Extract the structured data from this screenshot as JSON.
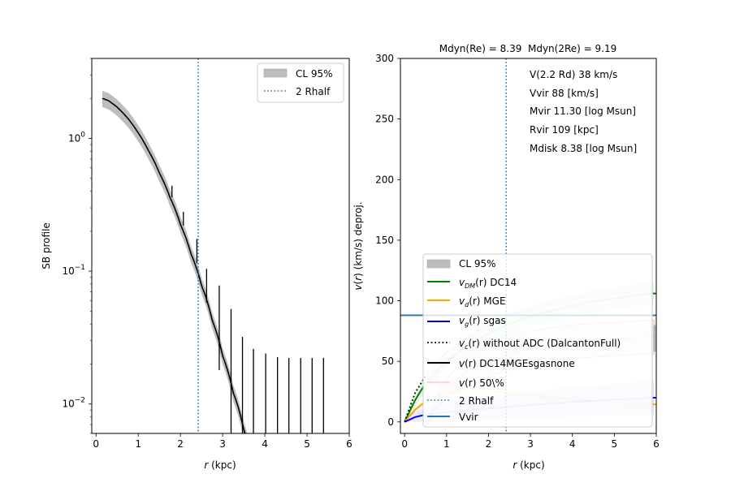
{
  "chart_data": [
    {
      "type": "line",
      "panel": "left",
      "title": "",
      "xlabel": "r (kpc)",
      "ylabel": "SB profile",
      "yscale": "log",
      "xlim": [
        -0.1,
        6.0
      ],
      "ylim": [
        0.006,
        4.0
      ],
      "xticks": [
        0,
        1,
        2,
        3,
        4,
        5,
        6
      ],
      "yticks": [
        {
          "value": 1,
          "label_base": "10",
          "label_exp": "0"
        },
        {
          "value": 0.1,
          "label_base": "10",
          "label_exp": "−1"
        },
        {
          "value": 0.01,
          "label_base": "10",
          "label_exp": "−2"
        }
      ],
      "legend": {
        "position": "upper right",
        "entries": [
          {
            "label": "CL 95%",
            "kind": "patch",
            "color": "#bdbdbd"
          },
          {
            "label": "2 Rhalf",
            "kind": "dotted",
            "color": "#1f77b4"
          }
        ]
      },
      "rhalf2": 2.42,
      "model": {
        "name": "SB model",
        "color": "#000000",
        "band_color": "#bdbdbd",
        "x": [
          0.15,
          0.3,
          0.5,
          0.75,
          1.0,
          1.25,
          1.5,
          1.75,
          2.0,
          2.25,
          2.5,
          2.75,
          3.0,
          3.25,
          3.5,
          3.57
        ],
        "y": [
          2.0,
          1.92,
          1.72,
          1.42,
          1.1,
          0.8,
          0.55,
          0.36,
          0.225,
          0.135,
          0.078,
          0.043,
          0.023,
          0.0122,
          0.0064,
          0.0055
        ],
        "band_frac": 0.14
      },
      "errorbars": {
        "color": "#000000",
        "points": [
          {
            "x": 1.8,
            "lo": 0.36,
            "hi": 0.44
          },
          {
            "x": 2.07,
            "lo": 0.22,
            "hi": 0.28
          },
          {
            "x": 2.39,
            "lo": 0.115,
            "hi": 0.175
          },
          {
            "x": 2.62,
            "lo": 0.058,
            "hi": 0.104
          },
          {
            "x": 2.92,
            "lo": 0.018,
            "hi": 0.078
          },
          {
            "x": 3.2,
            "lo": 0.0055,
            "hi": 0.052
          },
          {
            "x": 3.47,
            "lo": 0.0055,
            "hi": 0.032
          },
          {
            "x": 3.73,
            "lo": 0.0055,
            "hi": 0.026
          },
          {
            "x": 4.02,
            "lo": 0.0055,
            "hi": 0.024
          },
          {
            "x": 4.3,
            "lo": 0.0055,
            "hi": 0.0225
          },
          {
            "x": 4.57,
            "lo": 0.0055,
            "hi": 0.0222
          },
          {
            "x": 4.85,
            "lo": 0.0055,
            "hi": 0.0222
          },
          {
            "x": 5.12,
            "lo": 0.0055,
            "hi": 0.0222
          },
          {
            "x": 5.39,
            "lo": 0.0055,
            "hi": 0.0222
          }
        ]
      }
    },
    {
      "type": "line",
      "panel": "right",
      "title": "Mdyn(Re) = 8.39  Mdyn(2Re) = 9.19",
      "xlabel": "r (kpc)",
      "ylabel": "v(r) (km/s) deproj.",
      "xlim": [
        -0.1,
        6.0
      ],
      "ylim": [
        -9.5,
        300
      ],
      "xticks": [
        0,
        1,
        2,
        3,
        4,
        5,
        6
      ],
      "yticks": [
        0,
        50,
        100,
        150,
        200,
        250,
        300
      ],
      "annotations": [
        "V(2.2 Rd) 38 km/s",
        "Vvir 88 [km/s]",
        "Mvir 11.30 [log Msun]",
        "Rvir 109 [kpc]",
        "Mdisk 8.38 [log Msun]"
      ],
      "rhalf2": 2.42,
      "vvir": 88,
      "legend": {
        "position": "lower right",
        "entries": [
          {
            "label": "CL 95%",
            "kind": "patch",
            "color": "#bdbdbd"
          },
          {
            "label_main": "v",
            "label_sub": "DM",
            "label_rest": "(r) DC14",
            "kind": "solid",
            "color": "#008000"
          },
          {
            "label_main": "v",
            "label_sub": "d",
            "label_rest": "(r) MGE",
            "kind": "solid",
            "color": "#ffa500"
          },
          {
            "label_main": "v",
            "label_sub": "g",
            "label_rest": "(r) sgas",
            "kind": "solid",
            "color": "#0000ff"
          },
          {
            "label_main": "v",
            "label_sub": "c",
            "label_rest": "(r) without ADC (DalcantonFull)",
            "kind": "dotted",
            "color": "#000000"
          },
          {
            "label_main": "v",
            "label_sub": "",
            "label_rest": "(r) DC14MGEsgasnone",
            "kind": "solid",
            "color": "#000000"
          },
          {
            "label_main": "v",
            "label_sub": "",
            "label_rest": "(r) 50\\%",
            "kind": "solid-faint",
            "color": "#ff9999"
          },
          {
            "label": "2 Rhalf",
            "kind": "dotted",
            "color": "#1f77b4"
          },
          {
            "label": "Vvir",
            "kind": "solid",
            "color": "#1f77b4"
          }
        ]
      },
      "series": [
        {
          "name": "vDM DC14",
          "color": "#008000",
          "x": [
            0,
            0.25,
            0.5,
            1.0,
            1.5,
            2.0,
            2.5,
            3.0,
            3.5,
            4.0,
            4.5,
            5.0,
            5.5,
            5.95
          ],
          "y": [
            0,
            18,
            32,
            50,
            63,
            73,
            81,
            87,
            92,
            96,
            99.5,
            102,
            104.5,
            106
          ],
          "band": [
            6,
            6,
            7,
            8,
            8,
            9,
            9,
            9,
            9,
            9,
            9,
            9,
            9,
            9
          ]
        },
        {
          "name": "vd MGE",
          "color": "#ffa500",
          "x": [
            0,
            0.25,
            0.5,
            1.0,
            1.5,
            2.0,
            2.5,
            3.0,
            3.5,
            4.0,
            4.5,
            5.0,
            5.5,
            5.95
          ],
          "y": [
            0,
            10,
            17,
            23,
            25,
            25,
            24,
            22,
            20,
            18.5,
            17,
            16,
            15,
            14.5
          ],
          "band": [
            2,
            2,
            3,
            3,
            3,
            3,
            3,
            3,
            3,
            3,
            3,
            3,
            3,
            3
          ]
        },
        {
          "name": "vg sgas",
          "color": "#0000ff",
          "x": [
            0,
            0.25,
            0.5,
            1.0,
            2.0,
            3.0,
            4.0,
            5.0,
            5.95
          ],
          "y": [
            0,
            4,
            6,
            8,
            11,
            14,
            16.5,
            18.5,
            20
          ],
          "band": [
            3,
            4,
            6,
            8,
            10,
            11,
            12,
            13,
            14
          ]
        },
        {
          "name": "vc without ADC",
          "color": "#000000",
          "dotted": true,
          "x": [
            0,
            0.25,
            0.5,
            1.0,
            1.5,
            2.0,
            2.5,
            3.0,
            3.5,
            4.0,
            4.5,
            5.0,
            5.5,
            5.95
          ],
          "y": [
            0,
            24,
            38,
            58,
            71,
            80,
            88,
            93,
            98,
            101,
            104,
            106,
            108,
            109.5
          ]
        },
        {
          "name": "v 50%",
          "color": "#ff8080",
          "faint": true,
          "x": [
            0.6,
            0.75,
            1.0,
            1.5,
            2.0,
            2.5,
            3.0,
            3.5,
            4.0,
            4.5,
            5.0,
            5.5,
            5.95
          ],
          "y": [
            2,
            16,
            28,
            42,
            51,
            57,
            61,
            64,
            66,
            67.5,
            68.5,
            69.5,
            70
          ],
          "band": [
            2,
            5,
            8,
            12,
            13,
            14,
            14,
            14,
            14,
            14,
            14,
            14,
            14
          ]
        }
      ]
    }
  ]
}
